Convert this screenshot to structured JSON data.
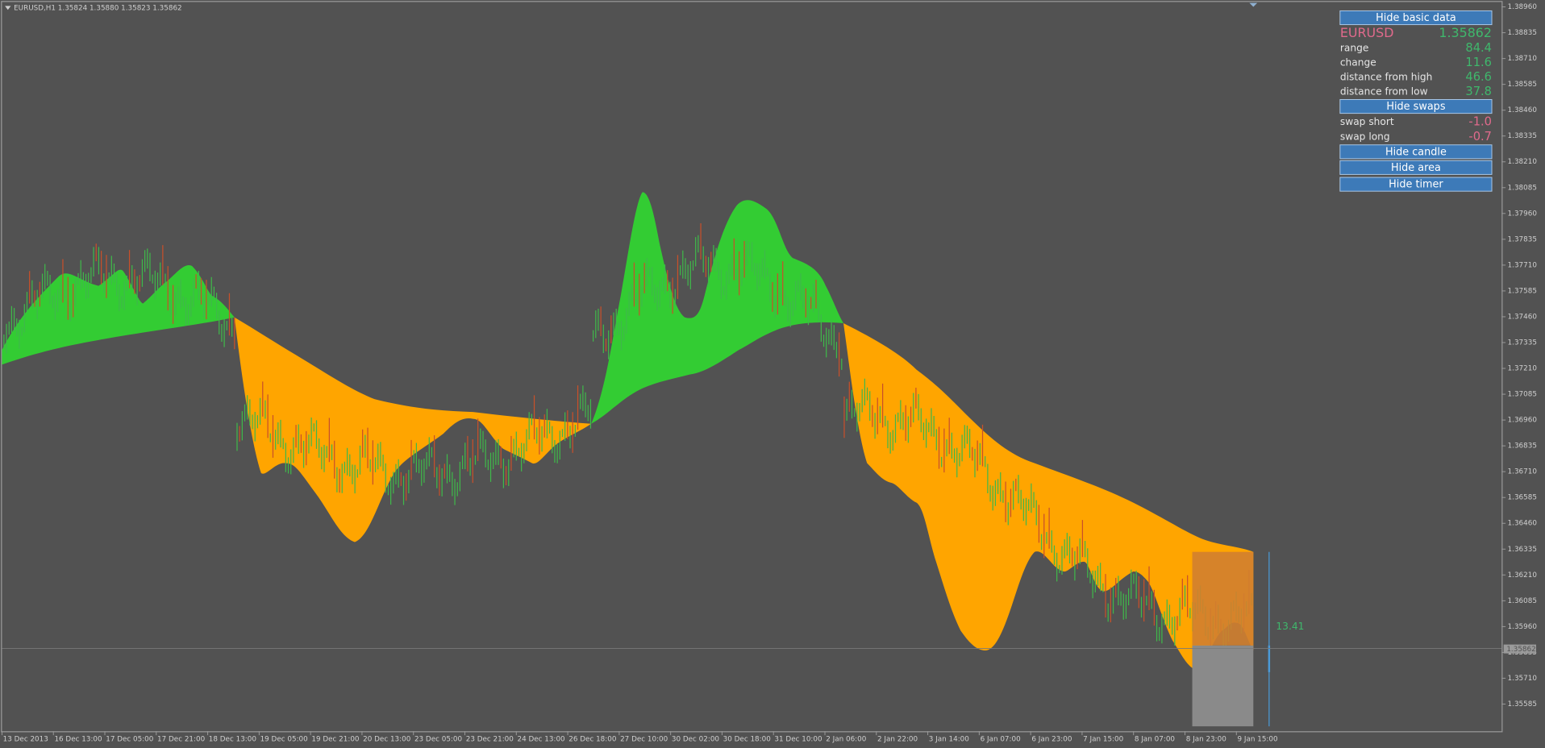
{
  "header": {
    "text": "EURUSD,H1  1.35824 1.35880 1.35823 1.35862"
  },
  "price_axis": {
    "labels": [
      "1.38960",
      "1.38835",
      "1.38710",
      "1.38585",
      "1.38460",
      "1.38335",
      "1.38210",
      "1.38085",
      "1.37960",
      "1.37835",
      "1.37710",
      "1.37585",
      "1.37460",
      "1.37335",
      "1.37210",
      "1.37085",
      "1.36960",
      "1.36835",
      "1.36710",
      "1.36585",
      "1.36460",
      "1.36335",
      "1.36210",
      "1.36085",
      "1.35960",
      "1.35835",
      "1.35710",
      "1.35585"
    ],
    "current": "1.35862"
  },
  "time_axis": {
    "labels": [
      "13 Dec 2013",
      "16 Dec 13:00",
      "17 Dec 05:00",
      "17 Dec 21:00",
      "18 Dec 13:00",
      "19 Dec 05:00",
      "19 Dec 21:00",
      "20 Dec 13:00",
      "23 Dec 05:00",
      "23 Dec 21:00",
      "24 Dec 13:00",
      "26 Dec 18:00",
      "27 Dec 10:00",
      "30 Dec 02:00",
      "30 Dec 18:00",
      "31 Dec 10:00",
      "2 Jan 06:00",
      "2 Jan 22:00",
      "3 Jan 14:00",
      "6 Jan 07:00",
      "6 Jan 23:00",
      "7 Jan 15:00",
      "8 Jan 07:00",
      "8 Jan 23:00",
      "9 Jan 15:00"
    ]
  },
  "panel": {
    "buttons": [
      "Hide basic data",
      "Hide swaps",
      "Hide candle",
      "Hide area",
      "Hide timer"
    ],
    "symbol": {
      "name": "EURUSD",
      "value": "1.35862"
    },
    "basic_rows": [
      {
        "label": "range",
        "value": "84.4"
      },
      {
        "label": "change",
        "value": "11.6"
      },
      {
        "label": "distance from high",
        "value": "46.6"
      },
      {
        "label": "distance from low",
        "value": "37.8"
      }
    ],
    "swap_rows": [
      {
        "label": "swap short",
        "value": "-1.0"
      },
      {
        "label": "swap long",
        "value": "-0.7"
      }
    ]
  },
  "timer": "13.41"
}
